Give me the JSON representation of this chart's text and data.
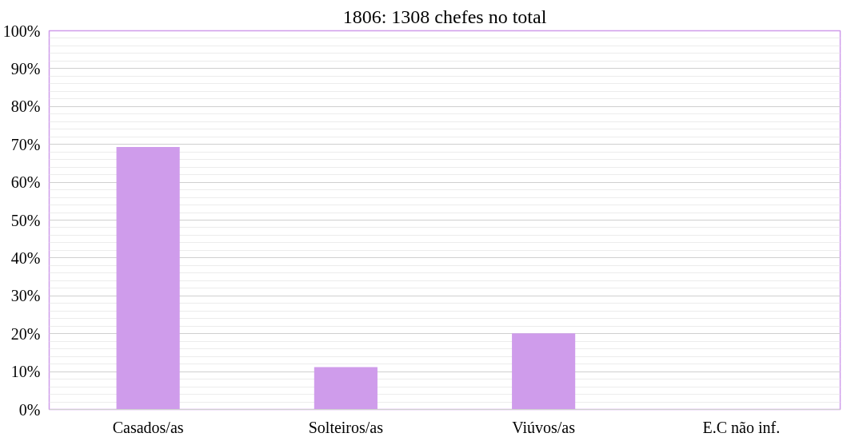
{
  "chart_data": {
    "type": "bar",
    "title": "1806: 1308 chefes no total",
    "categories": [
      "Casados/as",
      "Solteiros/as",
      "Viúvos/as",
      "E.C não inf."
    ],
    "values": [
      69.3,
      11.2,
      20.1,
      0
    ],
    "color": "#cf9ceb",
    "ylim": [
      0,
      100
    ],
    "yticks": [
      {
        "value": 0,
        "label": "0%"
      },
      {
        "value": 10,
        "label": "10%"
      },
      {
        "value": 20,
        "label": "20%"
      },
      {
        "value": 30,
        "label": "30%"
      },
      {
        "value": 40,
        "label": "40%"
      },
      {
        "value": 50,
        "label": "50%"
      },
      {
        "value": 60,
        "label": "60%"
      },
      {
        "value": 70,
        "label": "70%"
      },
      {
        "value": 80,
        "label": "80%"
      },
      {
        "value": 90,
        "label": "90%"
      },
      {
        "value": 100,
        "label": "100%"
      }
    ],
    "grid": "y"
  }
}
